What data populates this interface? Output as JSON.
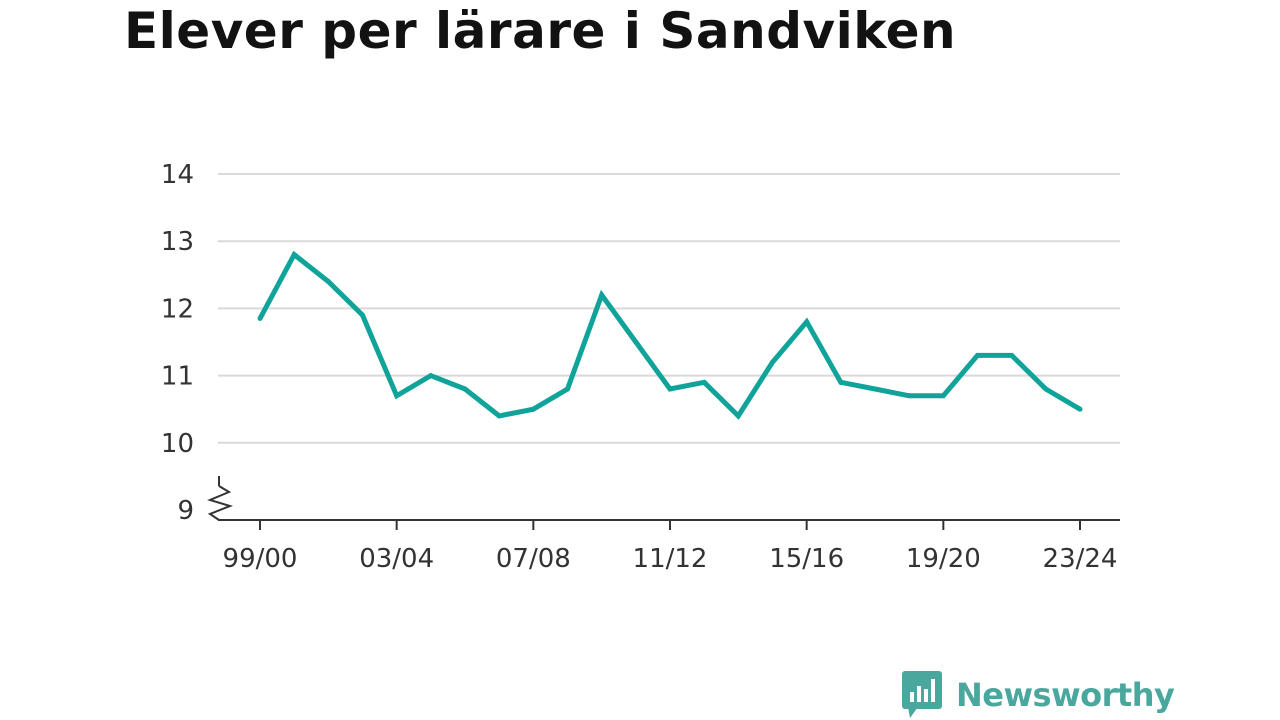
{
  "colors": {
    "line": "#0fa39a",
    "grid": "#d9d9d9",
    "axis": "#333333",
    "text": "#121212",
    "brand": "#4aa79d"
  },
  "brand": {
    "name": "Newsworthy",
    "icon": "bar-chart-speech-bubble-icon"
  },
  "chart_data": {
    "type": "line",
    "title": "Elever per lärare i Sandviken",
    "xlabel": "",
    "ylabel": "",
    "ylim": [
      9,
      14
    ],
    "yticks": [
      9,
      10,
      11,
      12,
      13,
      14
    ],
    "y_axis_break": true,
    "grid": true,
    "legend": "none",
    "x_tick_labels": [
      "99/00",
      "03/04",
      "07/08",
      "11/12",
      "15/16",
      "19/20",
      "23/24"
    ],
    "categories": [
      "99/00",
      "00/01",
      "01/02",
      "02/03",
      "03/04",
      "04/05",
      "05/06",
      "06/07",
      "07/08",
      "08/09",
      "09/10",
      "10/11",
      "11/12",
      "12/13",
      "13/14",
      "14/15",
      "15/16",
      "16/17",
      "17/18",
      "18/19",
      "19/20",
      "20/21",
      "21/22",
      "22/23",
      "23/24"
    ],
    "series": [
      {
        "values": [
          11.85,
          12.8,
          12.4,
          11.9,
          10.7,
          11.0,
          10.8,
          10.4,
          10.5,
          10.8,
          12.2,
          11.5,
          10.8,
          10.9,
          10.4,
          11.2,
          11.8,
          10.9,
          10.8,
          10.7,
          10.7,
          11.3,
          11.3,
          10.8,
          10.5
        ]
      }
    ]
  }
}
